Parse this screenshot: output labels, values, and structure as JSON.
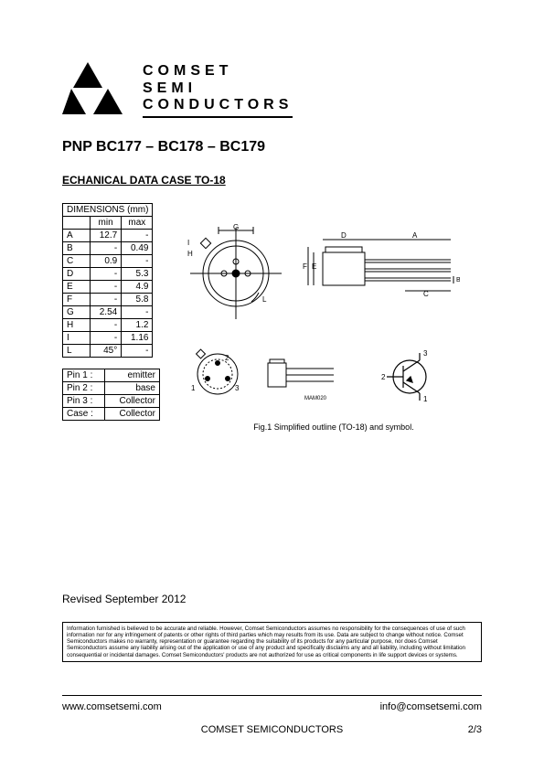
{
  "logo_text_lines": [
    "COMSET",
    "SEMI",
    "CONDUCTORS"
  ],
  "title": "PNP BC177 – BC178 – BC179",
  "section_title": "ECHANICAL DATA CASE TO-18",
  "dimensions_table": {
    "header": "DIMENSIONS (mm)",
    "col_min": "min",
    "col_max": "max",
    "rows": [
      {
        "label": "A",
        "min": "12.7",
        "max": "-"
      },
      {
        "label": "B",
        "min": "-",
        "max": "0.49"
      },
      {
        "label": "C",
        "min": "0.9",
        "max": "-"
      },
      {
        "label": "D",
        "min": "-",
        "max": "5.3"
      },
      {
        "label": "E",
        "min": "-",
        "max": "4.9"
      },
      {
        "label": "F",
        "min": "-",
        "max": "5.8"
      },
      {
        "label": "G",
        "min": "2.54",
        "max": "-"
      },
      {
        "label": "H",
        "min": "-",
        "max": "1.2"
      },
      {
        "label": "I",
        "min": "-",
        "max": "1.16"
      },
      {
        "label": "L",
        "min": "45°",
        "max": "-"
      }
    ]
  },
  "pins_table": {
    "rows": [
      {
        "label": "Pin 1 :",
        "value": "emitter"
      },
      {
        "label": "Pin 2 :",
        "value": "base"
      },
      {
        "label": "Pin 3 :",
        "value": "Collector"
      },
      {
        "label": "Case :",
        "value": "Collector"
      }
    ]
  },
  "figure_caption": "Fig.1  Simplified outline (TO-18) and symbol.",
  "diagram_labels": {
    "top_view": {
      "G": "G",
      "H": "H",
      "I": "I",
      "L": "L"
    },
    "side_view": {
      "D": "D",
      "A": "A",
      "E": "E",
      "F": "F",
      "C": "C",
      "B": "B"
    },
    "pinout": {
      "p1": "1",
      "p2": "2",
      "p3": "3",
      "code": "MAM020"
    },
    "symbol": {
      "p1": "1",
      "p2": "2",
      "p3": "3"
    }
  },
  "revised": "Revised September 2012",
  "disclaimer": "Information furnished is believed to be accurate and reliable. However, Comset Semiconductors assumes no responsibility for the consequences of use of such information nor for any infringement of patents or other rights of third parties which may results from its use. Data are subject to change without notice. Comset Semiconductors makes no warranty, representation or guarantee regarding the suitability of its products for any particular purpose, nor does Comset Semiconductors assume any liability arising out of the application or use of any product and specifically disclaims any and all liability, including without limitation consequential or incidental damages. Comset Semiconductors' products are not authorized for use as critical components in life support devices or systems.",
  "footer": {
    "url": "www.comsetsemi.com",
    "email": "info@comsetsemi.com",
    "company": "COMSET SEMICONDUCTORS",
    "page": "2/3"
  }
}
